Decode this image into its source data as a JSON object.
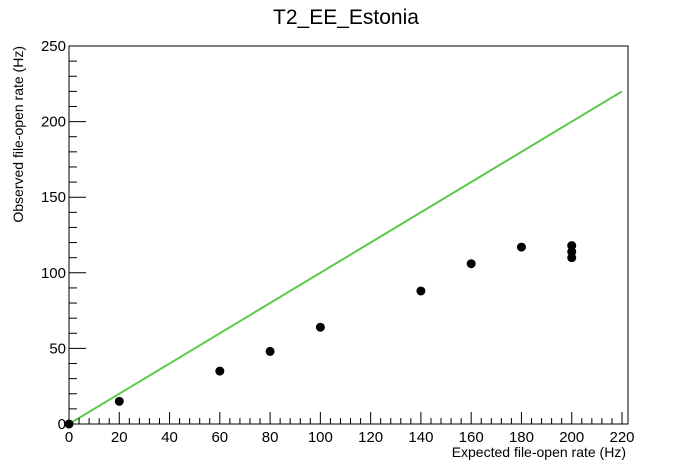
{
  "chart_data": {
    "type": "scatter",
    "title": "T2_EE_Estonia",
    "xlabel": "Expected file-open rate (Hz)",
    "ylabel": "Observed file-open rate (Hz)",
    "xlim": [
      0,
      220
    ],
    "ylim": [
      0,
      250
    ],
    "x_ticks": [
      0,
      20,
      40,
      60,
      80,
      100,
      120,
      140,
      160,
      180,
      200,
      220
    ],
    "y_ticks": [
      0,
      50,
      100,
      150,
      200,
      250
    ],
    "grid": false,
    "series": [
      {
        "type": "scatter",
        "color": "#000000",
        "points": [
          {
            "x": 0,
            "y": 0
          },
          {
            "x": 20,
            "y": 15
          },
          {
            "x": 60,
            "y": 35
          },
          {
            "x": 80,
            "y": 48
          },
          {
            "x": 100,
            "y": 64
          },
          {
            "x": 140,
            "y": 88
          },
          {
            "x": 160,
            "y": 106
          },
          {
            "x": 180,
            "y": 117
          },
          {
            "x": 200,
            "y": 110
          },
          {
            "x": 200,
            "y": 114
          },
          {
            "x": 200,
            "y": 118
          }
        ]
      },
      {
        "type": "line",
        "color": "#5cc94a",
        "points": [
          {
            "x": 0,
            "y": 0
          },
          {
            "x": 220,
            "y": 220
          }
        ]
      }
    ]
  }
}
